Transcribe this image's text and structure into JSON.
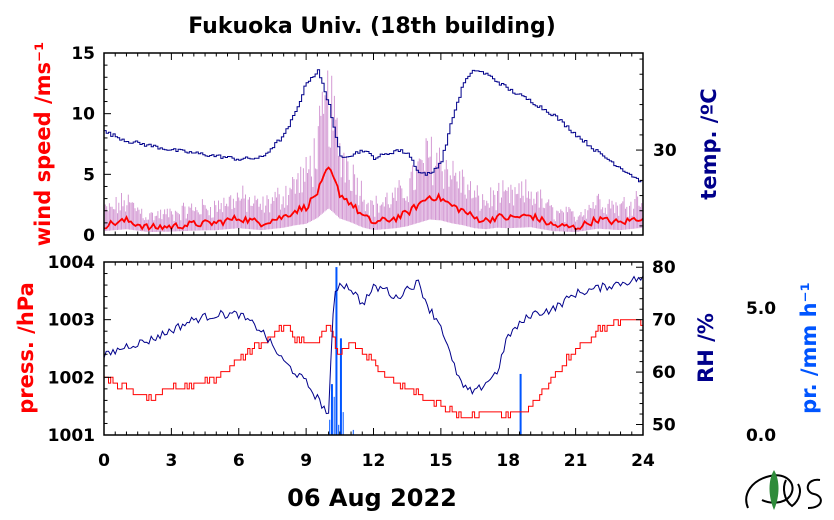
{
  "title": "Fukuoka Univ. (18th building)",
  "date_label": "06 Aug 2022",
  "colors": {
    "wind_speed": "#ff0000",
    "wind_gust": "#cc88cc",
    "temperature": "#00008b",
    "pressure": "#ff0000",
    "humidity": "#00008b",
    "precip": "#0055ff",
    "axis": "#000000",
    "logo_leaf": "#2e8b3a"
  },
  "x_axis": {
    "min": 0,
    "max": 24,
    "ticks": [
      "0",
      "3",
      "6",
      "9",
      "12",
      "15",
      "18",
      "21",
      "24"
    ]
  },
  "logo": {
    "icon": "ies-leaf-logo"
  },
  "chart_data": [
    {
      "type": "line",
      "title": "Fukuoka Univ. (18th building)",
      "x": [
        0,
        1,
        2,
        3,
        4,
        5,
        6,
        7,
        8,
        8.5,
        9,
        9.5,
        10,
        10.25,
        10.5,
        11,
        11.5,
        12,
        12.5,
        13,
        13.5,
        14,
        14.5,
        15,
        15.5,
        16,
        16.5,
        17,
        17.5,
        18,
        19,
        20,
        21,
        22,
        23,
        24
      ],
      "left_axis": {
        "label": "wind speed /ms⁻¹",
        "ylim": [
          0,
          15
        ],
        "ticks": [
          "0",
          "5",
          "10",
          "15"
        ]
      },
      "right_axis": {
        "label": "temp. /ºC",
        "ylim": [
          24.4,
          36.4
        ],
        "ticks": [
          "30"
        ]
      },
      "series": [
        {
          "axis": "left",
          "values": [
            0.8,
            1.2,
            0.6,
            0.7,
            0.9,
            1.0,
            1.4,
            1.0,
            1.5,
            2.0,
            2.3,
            3.5,
            5.5,
            4.5,
            3.4,
            2.6,
            1.6,
            1.0,
            1.2,
            1.4,
            1.8,
            2.5,
            3.2,
            3.0,
            2.4,
            2.0,
            1.4,
            1.2,
            1.5,
            1.4,
            1.6,
            0.8,
            0.6,
            1.3,
            1.0,
            1.5
          ]
        },
        {
          "axis": "right",
          "values": [
            31.2,
            30.6,
            30.3,
            30.0,
            29.8,
            29.6,
            29.4,
            29.5,
            31.0,
            32.5,
            34.5,
            35.2,
            33.0,
            31.0,
            29.6,
            29.7,
            30.0,
            29.5,
            29.7,
            30.0,
            29.8,
            28.5,
            28.4,
            29.3,
            32.2,
            34.5,
            35.3,
            35.0,
            34.5,
            34.0,
            33.2,
            32.3,
            31.0,
            29.8,
            28.8,
            27.8
          ]
        }
      ]
    },
    {
      "type": "line",
      "x": [
        0,
        1,
        2,
        3,
        4,
        5,
        6,
        7,
        8,
        8.5,
        9,
        9.5,
        10,
        10.25,
        10.5,
        11,
        11.5,
        12,
        12.5,
        13,
        13.5,
        14,
        14.5,
        15,
        15.5,
        16,
        16.5,
        17,
        17.5,
        18,
        19,
        20,
        21,
        22,
        23,
        24
      ],
      "left_axis": {
        "label": "press. /hPa",
        "ylim": [
          1001,
          1004
        ],
        "ticks": [
          "1001",
          "1002",
          "1003",
          "1004"
        ]
      },
      "right_axis": {
        "label": "RH /%",
        "ylim": [
          48,
          81
        ],
        "ticks": [
          "50",
          "60",
          "70",
          "80"
        ]
      },
      "series": [
        {
          "axis": "left",
          "values": [
            1002.0,
            1001.8,
            1001.6,
            1001.8,
            1001.9,
            1002.0,
            1002.3,
            1002.6,
            1002.9,
            1002.7,
            1002.6,
            1002.6,
            1002.9,
            1002.6,
            1002.4,
            1002.6,
            1002.4,
            1002.3,
            1002.0,
            1001.9,
            1001.8,
            1001.7,
            1001.6,
            1001.5,
            1001.4,
            1001.3,
            1001.3,
            1001.4,
            1001.4,
            1001.3,
            1001.5,
            1002.0,
            1002.5,
            1002.8,
            1003.0,
            1003.0
          ]
        },
        {
          "axis": "right",
          "values": [
            63,
            65,
            66,
            68,
            70,
            71,
            71,
            68,
            62,
            60,
            58,
            55,
            52,
            75,
            77,
            76,
            73,
            76,
            76,
            74,
            76,
            77,
            72,
            69,
            62,
            57,
            56,
            58,
            60,
            67,
            71,
            72,
            75,
            76,
            77,
            78
          ]
        }
      ],
      "precipitation": {
        "label": "pr. /mm h⁻¹",
        "ylim": [
          0,
          6.8
        ],
        "ticks": [
          "0.0",
          "5.0"
        ],
        "x": [
          10.15,
          10.35,
          10.55,
          18.55
        ],
        "values": [
          2.0,
          6.6,
          3.8,
          2.4
        ]
      }
    }
  ]
}
